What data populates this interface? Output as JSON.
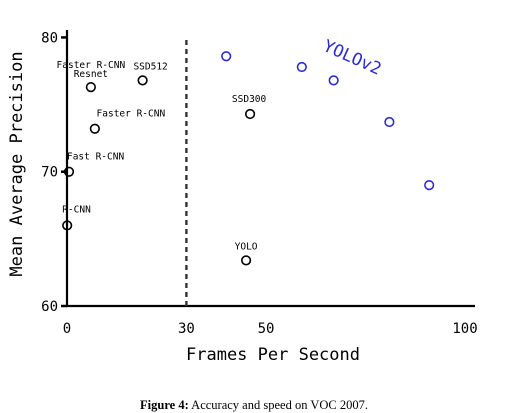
{
  "chart_data": {
    "type": "scatter",
    "title": "",
    "xlabel": "Frames Per Second",
    "ylabel": "Mean Average Precision",
    "xlim": [
      0,
      100
    ],
    "ylim": [
      60,
      81
    ],
    "xticks": [
      0,
      30,
      50,
      100
    ],
    "yticks": [
      60,
      70,
      80
    ],
    "reference_line": {
      "x": 30,
      "style": "dashed"
    },
    "grid": false,
    "legend": "none",
    "series": [
      {
        "color": "#000000",
        "points": [
          {
            "x": 6,
            "y": 76.3,
            "label": "Faster R-CNN Resnet"
          },
          {
            "x": 19,
            "y": 76.8,
            "label": "SSD512"
          },
          {
            "x": 7,
            "y": 73.2,
            "label": "Faster R-CNN"
          },
          {
            "x": 0.5,
            "y": 70.0,
            "label": "Fast R-CNN"
          },
          {
            "x": 0.05,
            "y": 66.0,
            "label": "R-CNN"
          },
          {
            "x": 46,
            "y": 74.3,
            "label": "SSD300"
          },
          {
            "x": 45,
            "y": 63.4,
            "label": "YOLO"
          }
        ]
      },
      {
        "name": "YOLOv2",
        "color": "#2b2bd6",
        "points": [
          {
            "x": 40,
            "y": 78.6
          },
          {
            "x": 59,
            "y": 77.8
          },
          {
            "x": 67,
            "y": 76.8
          },
          {
            "x": 81,
            "y": 73.7
          },
          {
            "x": 91,
            "y": 69.0
          }
        ]
      }
    ]
  },
  "caption": {
    "prefix": "Figure 4:",
    "text": "Accuracy and speed on VOC 2007."
  }
}
